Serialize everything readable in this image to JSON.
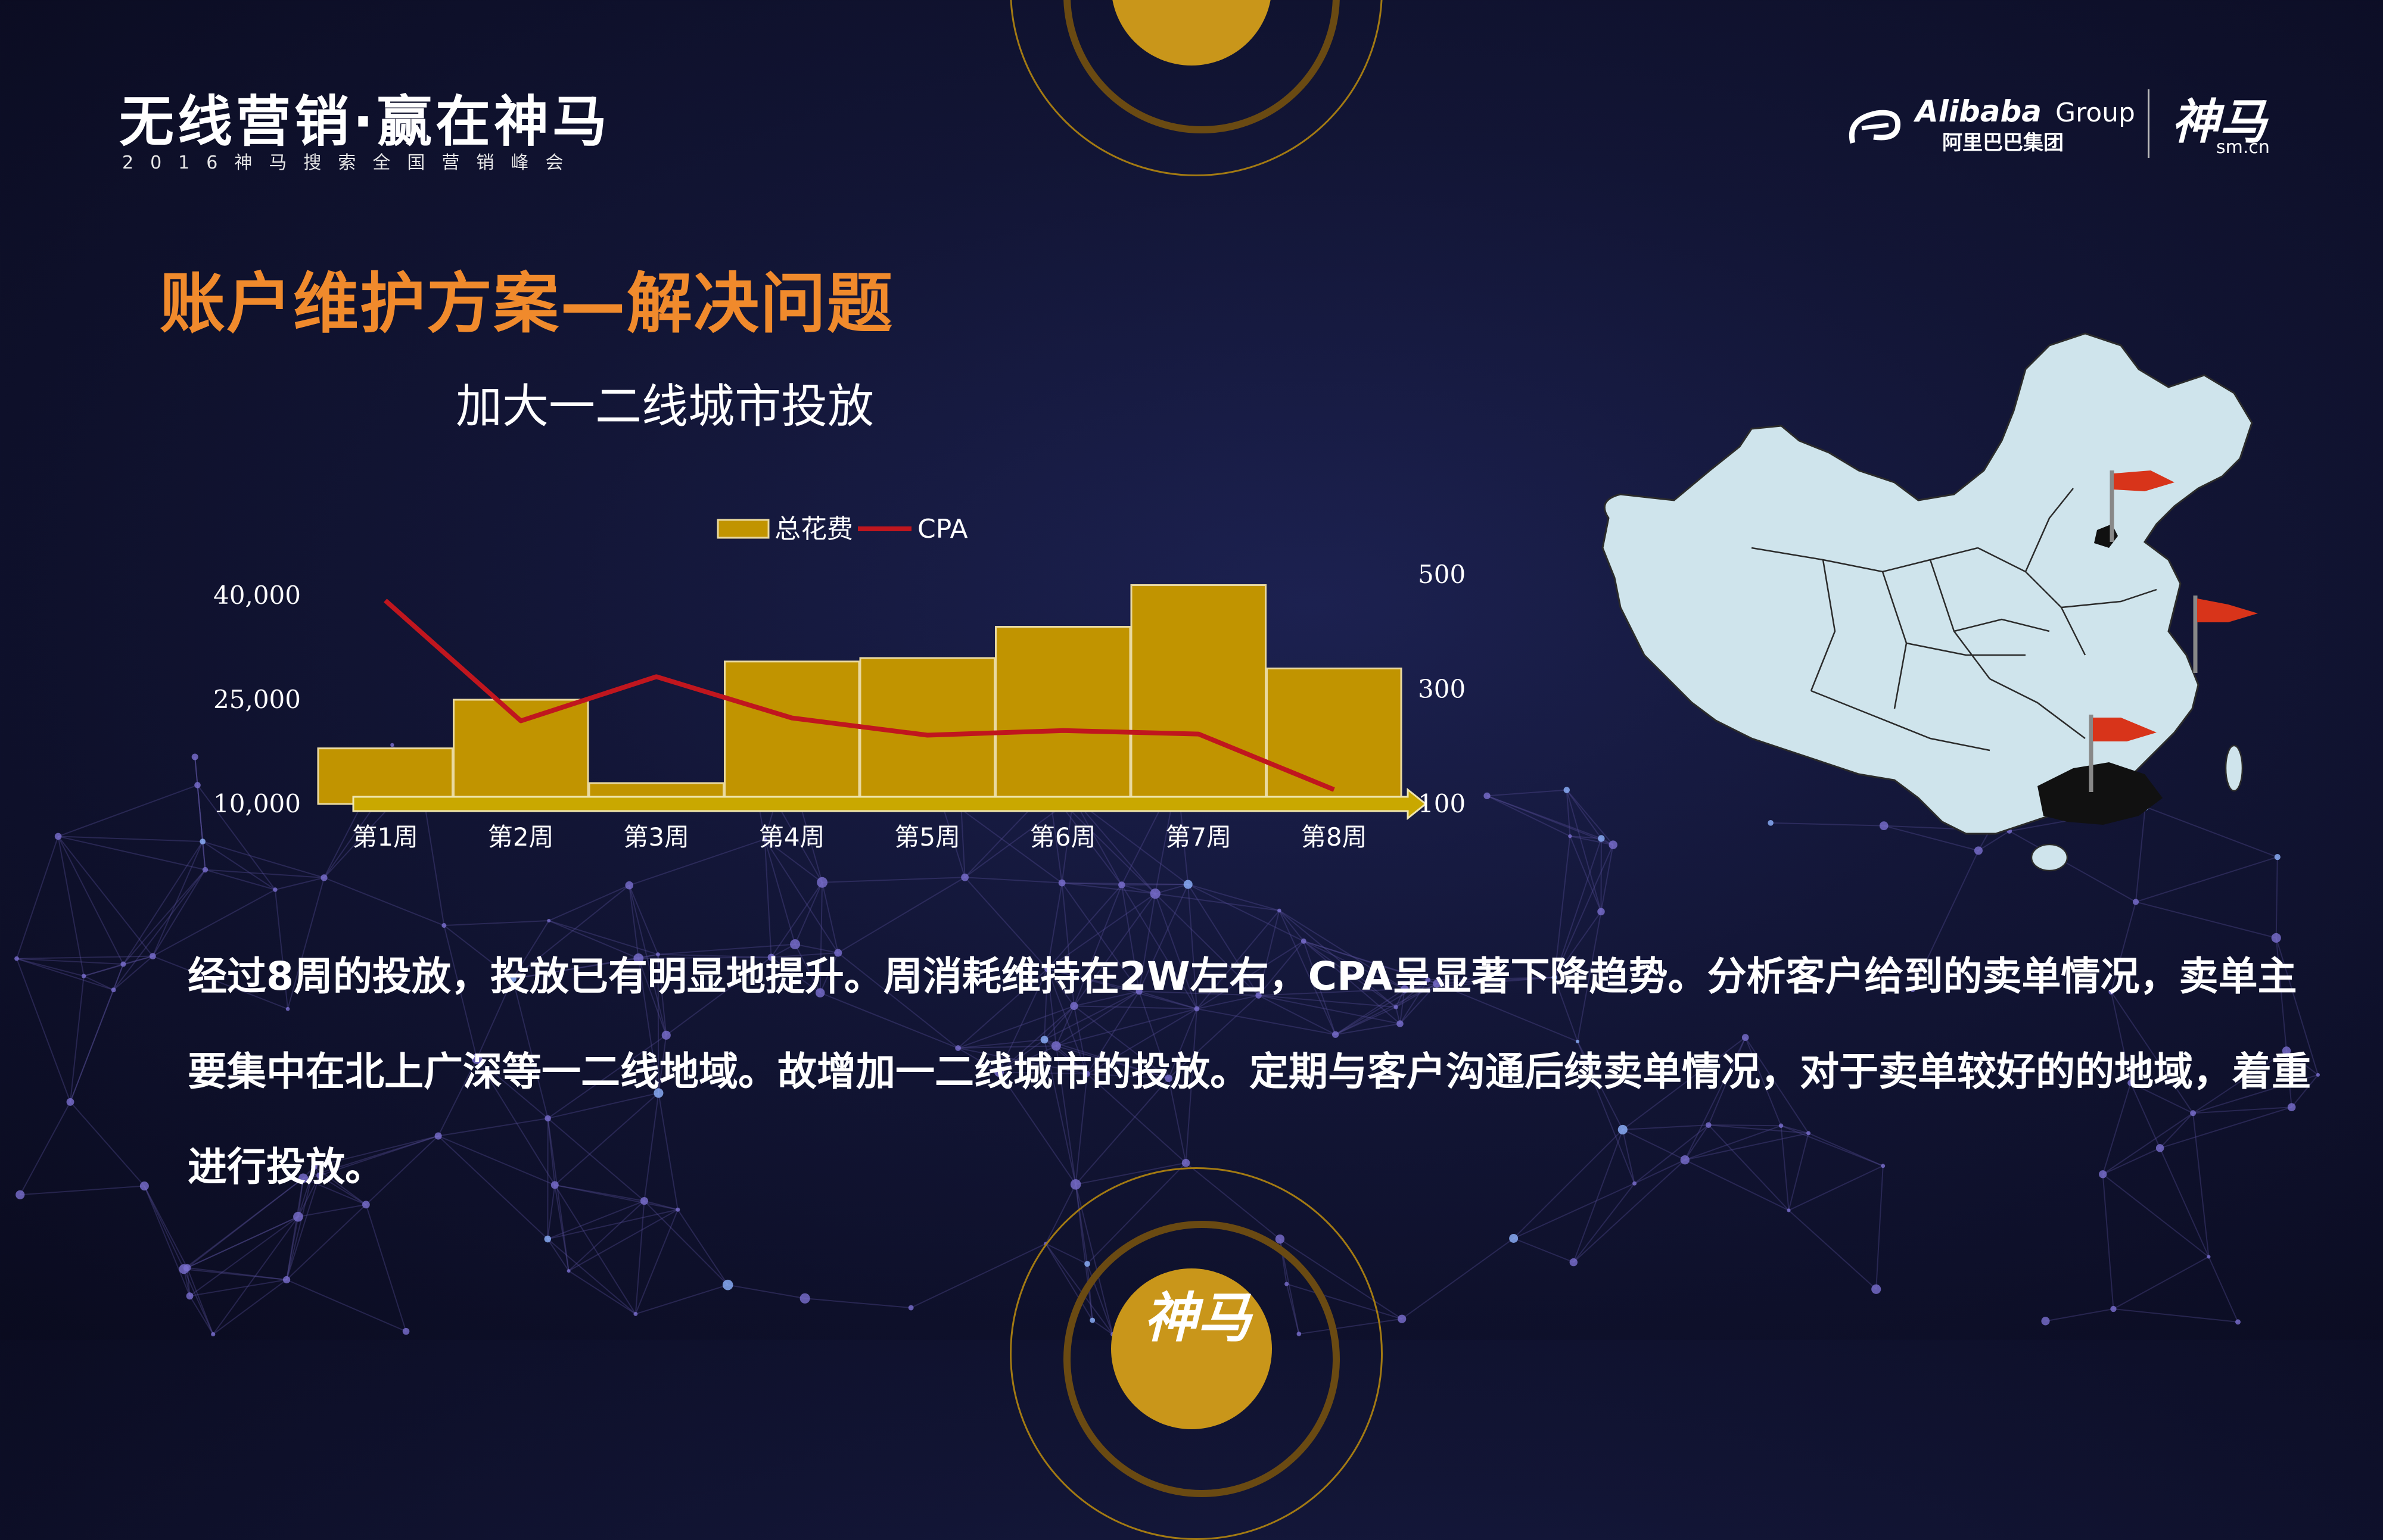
{
  "header": {
    "event_title": "无线营销·赢在神马",
    "event_subtitle": "2016神马搜索全国营销峰会",
    "alibaba_name": "Alibaba",
    "alibaba_group": "Group",
    "alibaba_cn": "阿里巴巴集团",
    "shenma_logo": "神马",
    "shenma_domain": "sm.cn"
  },
  "slide_title": "账户维护方案—解决问题",
  "chart_title": "加大一二线城市投放",
  "chart_data": {
    "type": "bar",
    "title": "加大一二线城市投放",
    "categories": [
      "第1周",
      "第2周",
      "第3周",
      "第4周",
      "第5周",
      "第6周",
      "第7周",
      "第8周"
    ],
    "series": [
      {
        "name": "总花费",
        "type": "bar",
        "axis": "left",
        "color": "#c19400",
        "values": [
          18000,
          25000,
          13000,
          30500,
          31000,
          35500,
          41500,
          29500
        ]
      },
      {
        "name": "CPA",
        "type": "line",
        "axis": "right",
        "color": "#c0161e",
        "values": [
          455,
          245,
          322,
          250,
          220,
          228,
          222,
          125
        ]
      }
    ],
    "y_left": {
      "ticks": [
        "40,000",
        "25,000",
        "10,000"
      ],
      "tick_values": [
        40000,
        25000,
        10000
      ],
      "range": [
        10000,
        40000
      ]
    },
    "y_right": {
      "ticks": [
        "500",
        "300",
        "100"
      ],
      "tick_values": [
        500,
        300,
        100
      ],
      "range": [
        100,
        500
      ]
    },
    "legend": [
      "总花费",
      "CPA"
    ],
    "legend_position": "top"
  },
  "body_text": "经过8周的投放，投放已有明显地提升。周消耗维持在2W左右，CPA呈显著下降趋势。分析客户给到的卖单情况，卖单主要集中在北上广深等一二线地域。故增加一二线城市的投放。定期与客户沟通后续卖单情况，对于卖单较好的的地域，着重进行投放。",
  "colors": {
    "title_orange": "#f08a2c",
    "bar_gold": "#c19400",
    "cpa_red": "#c0161e",
    "map_fill": "#cfe4ec",
    "flag_red": "#d8341a",
    "ring_gold": "#c9961a"
  },
  "footer": {
    "badge_text": "神马"
  }
}
